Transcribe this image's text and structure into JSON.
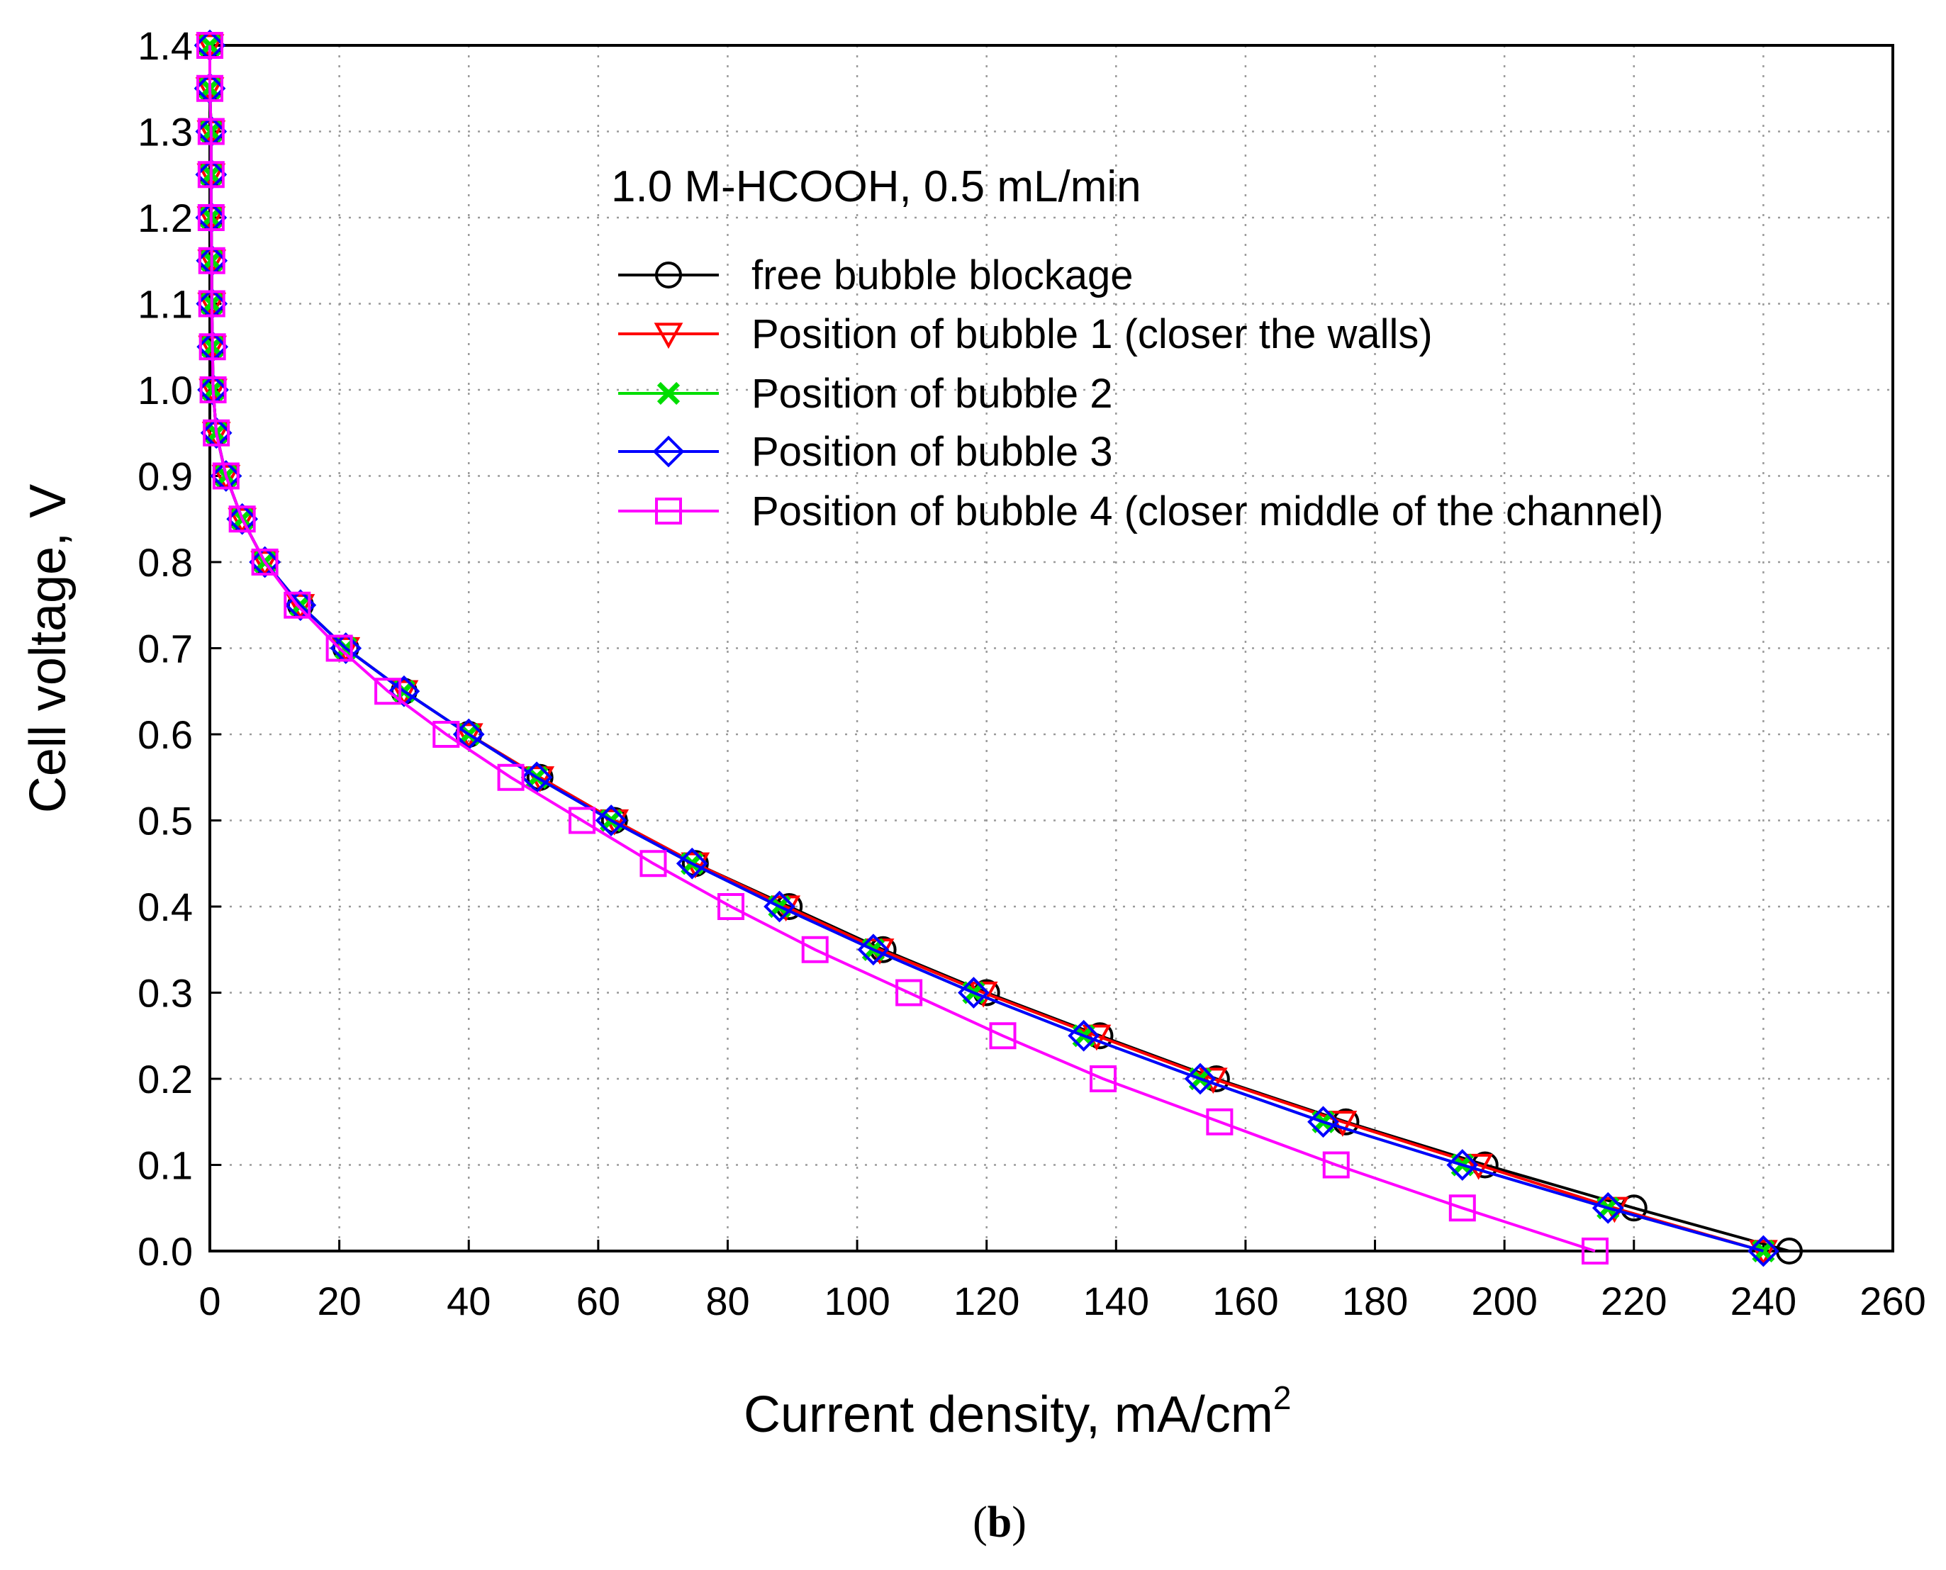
{
  "chart_data": {
    "type": "line",
    "caption": {
      "open": "(",
      "letter": "b",
      "close": ")"
    },
    "annotation": "1.0 M-HCOOH, 0.5 mL/min",
    "xlabel": {
      "main": "Current density, mA/cm",
      "sup": "2"
    },
    "ylabel": "Cell voltage, V",
    "xlim": [
      0,
      260
    ],
    "ylim": [
      0,
      1.4
    ],
    "x_ticks": [
      "0",
      "20",
      "40",
      "60",
      "80",
      "100",
      "120",
      "140",
      "160",
      "180",
      "200",
      "220",
      "240",
      "260"
    ],
    "y_ticks": [
      "0.0",
      "0.1",
      "0.2",
      "0.3",
      "0.4",
      "0.5",
      "0.6",
      "0.7",
      "0.8",
      "0.9",
      "1.0",
      "1.1",
      "1.2",
      "1.3",
      "1.4"
    ],
    "grid": true,
    "legend_position": "upper-middle",
    "series": [
      {
        "name": "free bubble blockage",
        "color": "#000000",
        "marker": "circle",
        "points": [
          [
            0,
            1.4
          ],
          [
            0,
            1.35
          ],
          [
            0.2,
            1.3
          ],
          [
            0.2,
            1.25
          ],
          [
            0.2,
            1.2
          ],
          [
            0.3,
            1.15
          ],
          [
            0.3,
            1.1
          ],
          [
            0.4,
            1.05
          ],
          [
            0.5,
            1.0
          ],
          [
            1,
            0.95
          ],
          [
            2.5,
            0.9
          ],
          [
            5,
            0.85
          ],
          [
            8.5,
            0.8
          ],
          [
            14,
            0.75
          ],
          [
            21,
            0.7
          ],
          [
            30,
            0.65
          ],
          [
            40,
            0.6
          ],
          [
            51,
            0.55
          ],
          [
            62.5,
            0.5
          ],
          [
            75,
            0.45
          ],
          [
            89.5,
            0.4
          ],
          [
            104,
            0.35
          ],
          [
            120,
            0.3
          ],
          [
            137.5,
            0.25
          ],
          [
            155.5,
            0.2
          ],
          [
            175.5,
            0.15
          ],
          [
            197,
            0.1
          ],
          [
            220,
            0.05
          ],
          [
            244,
            0.0
          ]
        ]
      },
      {
        "name": "Position of bubble 1 (closer the walls)",
        "color": "#ff0000",
        "marker": "triangle-down",
        "points": [
          [
            0,
            1.4
          ],
          [
            0,
            1.35
          ],
          [
            0.2,
            1.3
          ],
          [
            0.2,
            1.25
          ],
          [
            0.2,
            1.2
          ],
          [
            0.3,
            1.15
          ],
          [
            0.3,
            1.1
          ],
          [
            0.4,
            1.05
          ],
          [
            0.5,
            1.0
          ],
          [
            1,
            0.95
          ],
          [
            2.5,
            0.9
          ],
          [
            5,
            0.85
          ],
          [
            8.5,
            0.8
          ],
          [
            14,
            0.75
          ],
          [
            21,
            0.7
          ],
          [
            30,
            0.65
          ],
          [
            40,
            0.6
          ],
          [
            51,
            0.55
          ],
          [
            62.5,
            0.5
          ],
          [
            75,
            0.45
          ],
          [
            89,
            0.4
          ],
          [
            103.5,
            0.35
          ],
          [
            119.5,
            0.3
          ],
          [
            137,
            0.25
          ],
          [
            155,
            0.2
          ],
          [
            175,
            0.15
          ],
          [
            196,
            0.1
          ],
          [
            217,
            0.05
          ],
          [
            240,
            0.0
          ]
        ]
      },
      {
        "name": "Position of bubble 2",
        "color": "#00dd00",
        "marker": "x",
        "points": [
          [
            0,
            1.4
          ],
          [
            0,
            1.35
          ],
          [
            0.2,
            1.3
          ],
          [
            0.2,
            1.25
          ],
          [
            0.2,
            1.2
          ],
          [
            0.3,
            1.15
          ],
          [
            0.3,
            1.1
          ],
          [
            0.4,
            1.05
          ],
          [
            0.5,
            1.0
          ],
          [
            1,
            0.95
          ],
          [
            2.5,
            0.9
          ],
          [
            5,
            0.85
          ],
          [
            8.5,
            0.8
          ],
          [
            14,
            0.75
          ],
          [
            21,
            0.7
          ],
          [
            30,
            0.65
          ],
          [
            40,
            0.6
          ],
          [
            50.5,
            0.55
          ],
          [
            62,
            0.5
          ],
          [
            74.5,
            0.45
          ],
          [
            88,
            0.4
          ],
          [
            102.5,
            0.35
          ],
          [
            118,
            0.3
          ],
          [
            135,
            0.25
          ],
          [
            153,
            0.2
          ],
          [
            172,
            0.15
          ],
          [
            193.5,
            0.1
          ],
          [
            216,
            0.05
          ],
          [
            240,
            0.0
          ]
        ]
      },
      {
        "name": "Position of bubble 3",
        "color": "#0000ff",
        "marker": "diamond",
        "points": [
          [
            0,
            1.4
          ],
          [
            0,
            1.35
          ],
          [
            0.2,
            1.3
          ],
          [
            0.2,
            1.25
          ],
          [
            0.2,
            1.2
          ],
          [
            0.3,
            1.15
          ],
          [
            0.3,
            1.1
          ],
          [
            0.4,
            1.05
          ],
          [
            0.5,
            1.0
          ],
          [
            1,
            0.95
          ],
          [
            2.5,
            0.9
          ],
          [
            5,
            0.85
          ],
          [
            8.5,
            0.8
          ],
          [
            14,
            0.75
          ],
          [
            21,
            0.7
          ],
          [
            30,
            0.65
          ],
          [
            40,
            0.6
          ],
          [
            50.5,
            0.55
          ],
          [
            62,
            0.5
          ],
          [
            74.5,
            0.45
          ],
          [
            88,
            0.4
          ],
          [
            102.5,
            0.35
          ],
          [
            118,
            0.3
          ],
          [
            135,
            0.25
          ],
          [
            153,
            0.2
          ],
          [
            172,
            0.15
          ],
          [
            193.5,
            0.1
          ],
          [
            216,
            0.05
          ],
          [
            240,
            0.0
          ]
        ]
      },
      {
        "name": "Position of bubble 4 (closer middle of the channel)",
        "color": "#ff00ff",
        "marker": "square",
        "points": [
          [
            0,
            1.4
          ],
          [
            0,
            1.35
          ],
          [
            0.2,
            1.3
          ],
          [
            0.2,
            1.25
          ],
          [
            0.2,
            1.2
          ],
          [
            0.3,
            1.15
          ],
          [
            0.3,
            1.1
          ],
          [
            0.4,
            1.05
          ],
          [
            0.5,
            1.0
          ],
          [
            1,
            0.95
          ],
          [
            2.5,
            0.9
          ],
          [
            5,
            0.85
          ],
          [
            8.5,
            0.8
          ],
          [
            13.5,
            0.75
          ],
          [
            20,
            0.7
          ],
          [
            27.5,
            0.65
          ],
          [
            36.5,
            0.6
          ],
          [
            46.5,
            0.55
          ],
          [
            57.5,
            0.5
          ],
          [
            68.5,
            0.45
          ],
          [
            80.5,
            0.4
          ],
          [
            93.5,
            0.35
          ],
          [
            108,
            0.3
          ],
          [
            122.5,
            0.25
          ],
          [
            138,
            0.2
          ],
          [
            156,
            0.15
          ],
          [
            174,
            0.1
          ],
          [
            193.5,
            0.05
          ],
          [
            214,
            0.0
          ]
        ]
      }
    ]
  }
}
